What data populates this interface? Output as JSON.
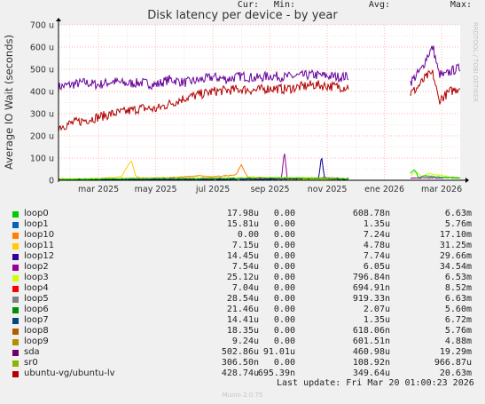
{
  "chart_data": {
    "type": "line",
    "title": "Disk latency per device - by year",
    "ylabel": "Average IO Wait (seconds)",
    "vertical_label": "RRDTOOL / TOBI OETIKER",
    "x_tick_labels": [
      "mar 2025",
      "may 2025",
      "jul 2025",
      "sep 2025",
      "nov 2025",
      "ene 2026",
      "mar 2026"
    ],
    "x_tick_values": [
      2.0,
      4.0,
      6.0,
      8.0,
      10.0,
      12.0,
      14.0
    ],
    "xlim": [
      0.6,
      14.65
    ],
    "y_tick_labels": [
      "0",
      "100 u",
      "200 u",
      "300 u",
      "400 u",
      "500 u",
      "600 u",
      "700 u"
    ],
    "y_tick_values": [
      0,
      100,
      200,
      300,
      400,
      500,
      600,
      700
    ],
    "ylim": [
      0,
      700
    ],
    "y_unit": "u",
    "gap": [
      10.75,
      12.9
    ],
    "series": [
      {
        "name": "sda",
        "color": "#660099",
        "x": [
          0.6,
          1.0,
          1.5,
          2.0,
          2.5,
          3.0,
          3.5,
          4.0,
          4.5,
          5.0,
          5.5,
          6.0,
          6.5,
          7.0,
          7.5,
          8.0,
          8.5,
          9.0,
          9.5,
          10.0,
          10.5,
          10.75,
          12.9,
          13.1,
          13.3,
          13.5,
          13.7,
          13.9,
          14.1,
          14.3,
          14.5,
          14.65
        ],
        "y": [
          420,
          430,
          440,
          430,
          445,
          435,
          440,
          430,
          455,
          440,
          450,
          465,
          455,
          470,
          460,
          470,
          465,
          470,
          475,
          470,
          465,
          470,
          440,
          470,
          500,
          560,
          600,
          480,
          470,
          490,
          500,
          505
        ]
      },
      {
        "name": "ubuntu-vg/ubuntu-lv",
        "color": "#b00000",
        "x": [
          0.6,
          1.0,
          1.5,
          2.0,
          2.5,
          3.0,
          3.5,
          4.0,
          4.5,
          5.0,
          5.5,
          6.0,
          6.5,
          7.0,
          7.5,
          8.0,
          8.5,
          9.0,
          9.5,
          10.0,
          10.5,
          10.75,
          12.9,
          13.1,
          13.3,
          13.5,
          13.7,
          13.9,
          14.1,
          14.3,
          14.5,
          14.65
        ],
        "y": [
          240,
          255,
          270,
          285,
          300,
          310,
          325,
          320,
          345,
          370,
          385,
          400,
          405,
          410,
          405,
          415,
          410,
          420,
          430,
          425,
          420,
          420,
          390,
          410,
          440,
          470,
          480,
          360,
          380,
          400,
          410,
          420
        ]
      },
      {
        "name": "loop11",
        "color": "#ffcc00",
        "x": [
          0.6,
          2.0,
          2.8,
          3.0,
          3.15,
          3.3,
          3.5,
          4.0,
          5.0,
          6.0,
          7.0,
          7.5,
          8.0,
          10.75
        ],
        "y": [
          5,
          8,
          15,
          60,
          90,
          20,
          10,
          8,
          6,
          10,
          8,
          6,
          4,
          3
        ]
      },
      {
        "name": "loop10",
        "color": "#ff8000",
        "x": [
          0.6,
          2.0,
          3.0,
          4.0,
          5.0,
          5.5,
          6.0,
          6.8,
          7.0,
          7.2,
          8.0,
          10.75
        ],
        "y": [
          4,
          5,
          8,
          10,
          15,
          20,
          15,
          25,
          70,
          15,
          10,
          8
        ]
      },
      {
        "name": "loop2",
        "color": "#990099",
        "x": [
          0.6,
          2.0,
          4.0,
          6.0,
          8.0,
          8.4,
          8.5,
          8.6,
          9.0,
          10.0,
          10.75,
          12.9,
          14.65
        ],
        "y": [
          3,
          3,
          4,
          5,
          8,
          10,
          130,
          10,
          8,
          10,
          8,
          10,
          12
        ]
      },
      {
        "name": "loop12",
        "color": "#000099",
        "x": [
          0.6,
          2.0,
          4.0,
          6.0,
          8.0,
          9.0,
          9.7,
          9.8,
          9.9,
          10.0,
          10.75
        ],
        "y": [
          2,
          3,
          3,
          4,
          5,
          6,
          10,
          110,
          12,
          6,
          5
        ]
      },
      {
        "name": "loop3",
        "color": "#ccff00",
        "x": [
          0.6,
          2.0,
          4.0,
          6.0,
          8.0,
          10.0,
          10.75,
          12.9,
          13.1,
          13.3,
          13.5,
          14.65
        ],
        "y": [
          6,
          8,
          10,
          10,
          12,
          10,
          8,
          20,
          40,
          15,
          30,
          10
        ]
      },
      {
        "name": "loop5",
        "color": "#00cc00",
        "x": [
          0.6,
          2.0,
          4.0,
          6.0,
          8.0,
          10.0,
          10.75,
          12.9,
          13.05,
          13.2,
          13.4,
          14.65
        ],
        "y": [
          4,
          6,
          8,
          8,
          10,
          8,
          6,
          30,
          50,
          10,
          20,
          8
        ]
      }
    ]
  },
  "legend": {
    "headers": {
      "cur": "Cur:",
      "min": "Min:",
      "avg": "Avg:",
      "max": "Max:"
    },
    "rows": [
      {
        "name": "loop0",
        "color": "#00cc00",
        "cur": "17.98u",
        "min": "0.00",
        "avg": "608.78n",
        "max": "6.63m"
      },
      {
        "name": "loop1",
        "color": "#0066b3",
        "cur": "15.81u",
        "min": "0.00",
        "avg": "1.35u",
        "max": "5.76m"
      },
      {
        "name": "loop10",
        "color": "#ff8000",
        "cur": "0.00",
        "min": "0.00",
        "avg": "7.24u",
        "max": "17.10m"
      },
      {
        "name": "loop11",
        "color": "#ffcc00",
        "cur": "7.15u",
        "min": "0.00",
        "avg": "4.78u",
        "max": "31.25m"
      },
      {
        "name": "loop12",
        "color": "#330099",
        "cur": "14.45u",
        "min": "0.00",
        "avg": "7.74u",
        "max": "29.66m"
      },
      {
        "name": "loop2",
        "color": "#990099",
        "cur": "7.54u",
        "min": "0.00",
        "avg": "6.05u",
        "max": "34.54m"
      },
      {
        "name": "loop3",
        "color": "#ccff00",
        "cur": "25.12u",
        "min": "0.00",
        "avg": "796.84n",
        "max": "6.53m"
      },
      {
        "name": "loop4",
        "color": "#ff0000",
        "cur": "7.04u",
        "min": "0.00",
        "avg": "694.91n",
        "max": "8.52m"
      },
      {
        "name": "loop5",
        "color": "#808080",
        "cur": "28.54u",
        "min": "0.00",
        "avg": "919.33n",
        "max": "6.63m"
      },
      {
        "name": "loop6",
        "color": "#008f00",
        "cur": "21.46u",
        "min": "0.00",
        "avg": "2.07u",
        "max": "5.60m"
      },
      {
        "name": "loop7",
        "color": "#00487d",
        "cur": "14.41u",
        "min": "0.00",
        "avg": "1.35u",
        "max": "6.72m"
      },
      {
        "name": "loop8",
        "color": "#b35a00",
        "cur": "18.35u",
        "min": "0.00",
        "avg": "618.06n",
        "max": "5.76m"
      },
      {
        "name": "loop9",
        "color": "#b38f00",
        "cur": "9.24u",
        "min": "0.00",
        "avg": "601.51n",
        "max": "4.88m"
      },
      {
        "name": "sda",
        "color": "#6b006b",
        "cur": "502.86u",
        "min": "91.01u",
        "avg": "460.98u",
        "max": "19.29m"
      },
      {
        "name": "sr0",
        "color": "#8fb300",
        "cur": "306.50n",
        "min": "0.00",
        "avg": "108.92n",
        "max": "966.87u"
      },
      {
        "name": "ubuntu-vg/ubuntu-lv",
        "color": "#b30000",
        "cur": "428.74u",
        "min": "695.39n",
        "avg": "349.64u",
        "max": "20.63m"
      }
    ]
  },
  "footer": {
    "last_update": "Last update: Fri Mar 20 01:00:23 2026",
    "munin_version": "Munin 2.0.75"
  }
}
